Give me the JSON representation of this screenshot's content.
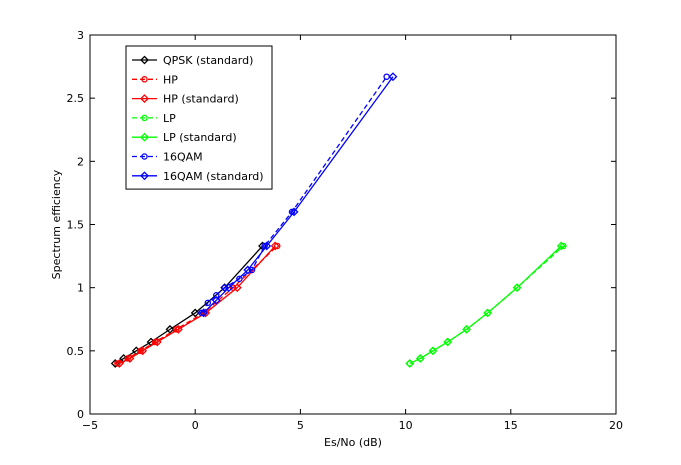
{
  "chart_data": {
    "type": "line",
    "title": "",
    "xlabel": "Es/No (dB)",
    "ylabel": "Spectrum efficiency",
    "xlim": [
      -5,
      20
    ],
    "ylim": [
      0,
      3
    ],
    "xticks": [
      -5,
      0,
      5,
      10,
      15,
      20
    ],
    "yticks": [
      0,
      0.5,
      1,
      1.5,
      2,
      2.5,
      3
    ],
    "grid": false,
    "legend_position": "top-left",
    "series": [
      {
        "name": "QPSK (standard)",
        "color": "#000000",
        "dash": "solid",
        "marker": "diamond",
        "x": [
          -3.8,
          -3.4,
          -2.8,
          -2.1,
          -1.2,
          0,
          1.4,
          3.2
        ],
        "y": [
          0.4,
          0.44,
          0.5,
          0.57,
          0.67,
          0.8,
          1.0,
          1.33
        ]
      },
      {
        "name": "HP",
        "color": "#ff0000",
        "dash": "dashed",
        "marker": "circle",
        "x": [
          -3.7,
          -3.2,
          -2.6,
          -1.9,
          -0.9,
          0.4,
          1.8,
          3.9
        ],
        "y": [
          0.4,
          0.44,
          0.5,
          0.57,
          0.67,
          0.8,
          1.0,
          1.33
        ]
      },
      {
        "name": "HP (standard)",
        "color": "#ff0000",
        "dash": "solid",
        "marker": "diamond",
        "x": [
          -3.6,
          -3.1,
          -2.5,
          -1.8,
          -0.8,
          0.5,
          2.0,
          3.8
        ],
        "y": [
          0.4,
          0.44,
          0.5,
          0.57,
          0.67,
          0.8,
          1.0,
          1.33
        ]
      },
      {
        "name": "LP",
        "color": "#00ff00",
        "dash": "dashed",
        "marker": "circle",
        "x": [
          10.2,
          10.7,
          11.3,
          12.0,
          12.9,
          13.9,
          15.3,
          17.5
        ],
        "y": [
          0.4,
          0.44,
          0.5,
          0.57,
          0.67,
          0.8,
          1.0,
          1.33
        ]
      },
      {
        "name": "LP (standard)",
        "color": "#00ff00",
        "dash": "solid",
        "marker": "diamond",
        "x": [
          10.2,
          10.7,
          11.3,
          12.0,
          12.9,
          13.9,
          15.3,
          17.4
        ],
        "y": [
          0.4,
          0.44,
          0.5,
          0.57,
          0.67,
          0.8,
          1.0,
          1.33
        ]
      },
      {
        "name": "16QAM",
        "color": "#0000ff",
        "dash": "dashed",
        "marker": "circle",
        "x": [
          0.3,
          0.6,
          1.0,
          1.4,
          2.1,
          2.7,
          3.3,
          4.6,
          9.1
        ],
        "y": [
          0.8,
          0.88,
          0.94,
          1.0,
          1.07,
          1.14,
          1.33,
          1.6,
          2.67
        ]
      },
      {
        "name": "16QAM (standard)",
        "color": "#0000ff",
        "dash": "solid",
        "marker": "diamond",
        "x": [
          0.4,
          1.0,
          1.6,
          2.5,
          3.4,
          4.7,
          9.4
        ],
        "y": [
          0.8,
          0.9,
          1.0,
          1.14,
          1.33,
          1.6,
          2.67
        ]
      }
    ]
  }
}
